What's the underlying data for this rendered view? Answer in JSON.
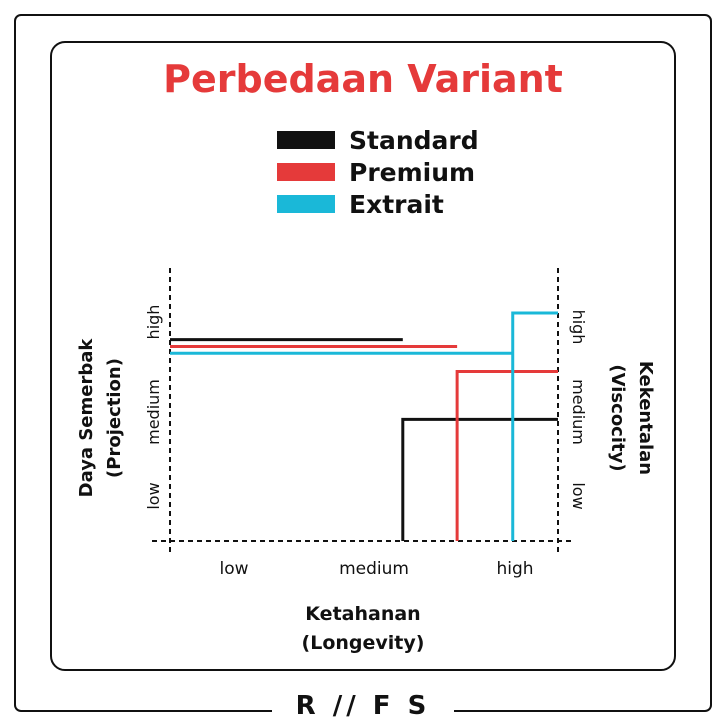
{
  "chart_data": {
    "type": "line",
    "title": "Perbedaan Variant",
    "xlabel_line1": "Ketahanan",
    "xlabel_line2": "(Longevity)",
    "ylabel_left_line1": "Daya Semerbak",
    "ylabel_left_line2": "(Projection)",
    "ylabel_right_line1": "Kekentalan",
    "ylabel_right_line2": "(Viscocity)",
    "x_ticks": [
      "low",
      "medium",
      "high"
    ],
    "y_left_ticks": [
      "low",
      "medium",
      "high"
    ],
    "y_right_ticks": [
      "low",
      "medium",
      "high"
    ],
    "xlim": [
      0,
      3
    ],
    "ylim": [
      0,
      3
    ],
    "legend_position": "top-center",
    "series": [
      {
        "name": "Standard",
        "color": "#111111",
        "projection": 2.65,
        "longevity": 1.8,
        "viscosity": 1.6
      },
      {
        "name": "Premium",
        "color": "#e53a3a",
        "projection": 2.56,
        "longevity": 2.22,
        "viscosity": 2.23
      },
      {
        "name": "Extrait",
        "color": "#1ab8d8",
        "projection": 2.47,
        "longevity": 2.65,
        "viscosity": 3.0
      }
    ]
  },
  "footer": {
    "logo_text": "R ∕∕ F S"
  }
}
